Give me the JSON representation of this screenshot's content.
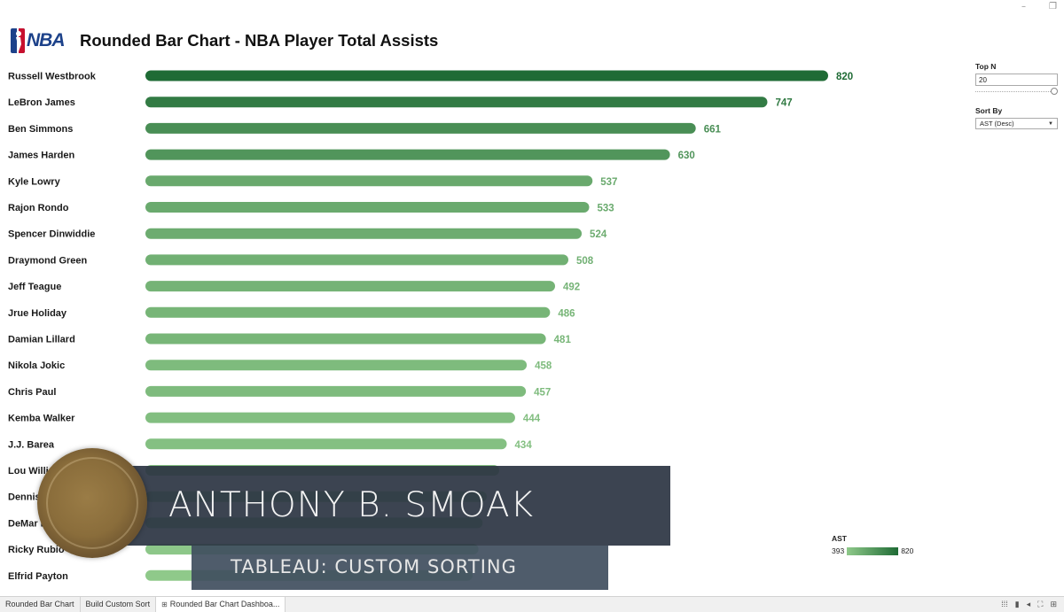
{
  "window": {
    "minimize": "–",
    "restore": "❐"
  },
  "header": {
    "logo_text": "NBA",
    "logo_icon": "nba-logo-icon",
    "title": "Rounded Bar Chart - NBA Player Total Assists"
  },
  "chart_data": {
    "type": "bar",
    "orientation": "horizontal",
    "title": "Rounded Bar Chart - NBA Player Total Assists",
    "categories": [
      "Russell Westbrook",
      "LeBron James",
      "Ben Simmons",
      "James Harden",
      "Kyle Lowry",
      "Rajon Rondo",
      "Spencer Dinwiddie",
      "Draymond Green",
      "Jeff Teague",
      "Jrue Holiday",
      "Damian Lillard",
      "Nikola Jokic",
      "Chris Paul",
      "Kemba Walker",
      "J.J. Barea",
      "Lou Williams",
      "Dennis Schröder",
      "DeMar DeRozan",
      "Ricky Rubio",
      "Elfrid Payton"
    ],
    "category_labels_visible": [
      "Russell Westbrook",
      "LeBron James",
      "Ben Simmons",
      "James Harden",
      "Kyle Lowry",
      "Rajon Rondo",
      "Spencer Dinwiddie",
      "Draymond Green",
      "Jeff Teague",
      "Jrue Holiday",
      "Damian Lillard",
      "Nikola Jokic",
      "Chris Paul",
      "Kemba Walker",
      "J.J. Barea",
      "Lou Williams",
      "Dennis Sc",
      "DeMar De",
      "Ricky Rubio",
      "Elfrid Payton"
    ],
    "values": [
      820,
      747,
      661,
      630,
      537,
      533,
      524,
      508,
      492,
      486,
      481,
      458,
      457,
      444,
      434,
      425,
      410,
      405,
      400,
      393
    ],
    "value_labels_visible": [
      true,
      true,
      true,
      true,
      true,
      true,
      true,
      true,
      true,
      true,
      true,
      true,
      true,
      true,
      true,
      false,
      false,
      false,
      false,
      false
    ],
    "xlim": [
      0,
      820
    ],
    "grid": false,
    "color_encoding": {
      "field": "AST",
      "min": 393,
      "max": 820,
      "color_min": "#8fc98a",
      "color_max": "#1f6b35"
    }
  },
  "controls": {
    "top_n": {
      "label": "Top N",
      "value": "20",
      "slider_level": 1.0
    },
    "sort_by": {
      "label": "Sort By",
      "value": "AST (Desc)",
      "icon": "caret-down-icon"
    }
  },
  "legend": {
    "title": "AST",
    "min_label": "393",
    "max_label": "820"
  },
  "overlay": {
    "name": "ANTHONY B. SMOAK",
    "subtitle": "TABLEAU: CUSTOM SORTING"
  },
  "tabs": [
    {
      "label": "Rounded Bar Chart",
      "active": false,
      "icon": ""
    },
    {
      "label": "Build Custom Sort",
      "active": false,
      "icon": ""
    },
    {
      "label": "Rounded Bar Chart Dashboa...",
      "active": true,
      "icon": "⊞"
    }
  ],
  "tab_tools": [
    "⁞⁞⁞",
    "▮",
    "◂",
    "⛶",
    "⊞"
  ]
}
